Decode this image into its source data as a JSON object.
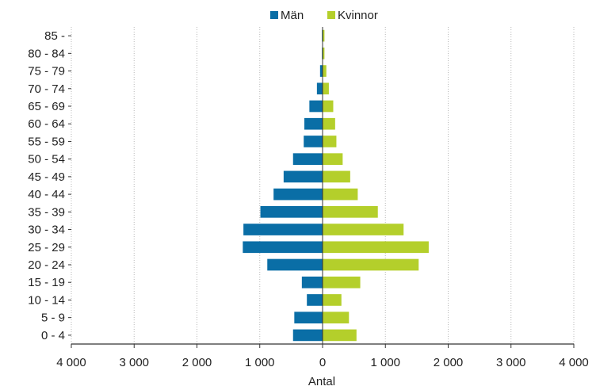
{
  "chart_data": {
    "type": "bar",
    "orientation": "horizontal",
    "layout": "population-pyramid",
    "categories": [
      "0 - 4",
      "5 - 9",
      "10 - 14",
      "15 - 19",
      "20 - 24",
      "25 - 29",
      "30 - 34",
      "35 - 39",
      "40 - 44",
      "45 - 49",
      "50 - 54",
      "55 - 59",
      "60 - 64",
      "65 - 69",
      "70 - 74",
      "75 - 79",
      "80 - 84",
      "85 -"
    ],
    "series": [
      {
        "name": "Män",
        "color": "#0a6ea6",
        "side": "left",
        "values": [
          470,
          450,
          250,
          330,
          880,
          1270,
          1260,
          990,
          780,
          620,
          470,
          300,
          290,
          210,
          90,
          40,
          10,
          10
        ]
      },
      {
        "name": "Kvinnor",
        "color": "#b4cf2b",
        "side": "right",
        "values": [
          540,
          420,
          300,
          600,
          1530,
          1690,
          1290,
          880,
          560,
          440,
          320,
          220,
          200,
          170,
          100,
          60,
          30,
          30
        ]
      }
    ],
    "xlabel": "Antal",
    "ylabel": "",
    "xlim": [
      -4000,
      4000
    ],
    "x_ticks": [
      -4000,
      -3000,
      -2000,
      -1000,
      0,
      1000,
      2000,
      3000,
      4000
    ],
    "x_tick_labels": [
      "4 000",
      "3 000",
      "2 000",
      "1 000",
      "0",
      "1 000",
      "2 000",
      "3 000",
      "4 000"
    ],
    "grid": "vertical-dotted",
    "legend_position": "top-center",
    "legend": [
      {
        "label": "Män",
        "color": "#0a6ea6"
      },
      {
        "label": "Kvinnor",
        "color": "#b4cf2b"
      }
    ]
  }
}
